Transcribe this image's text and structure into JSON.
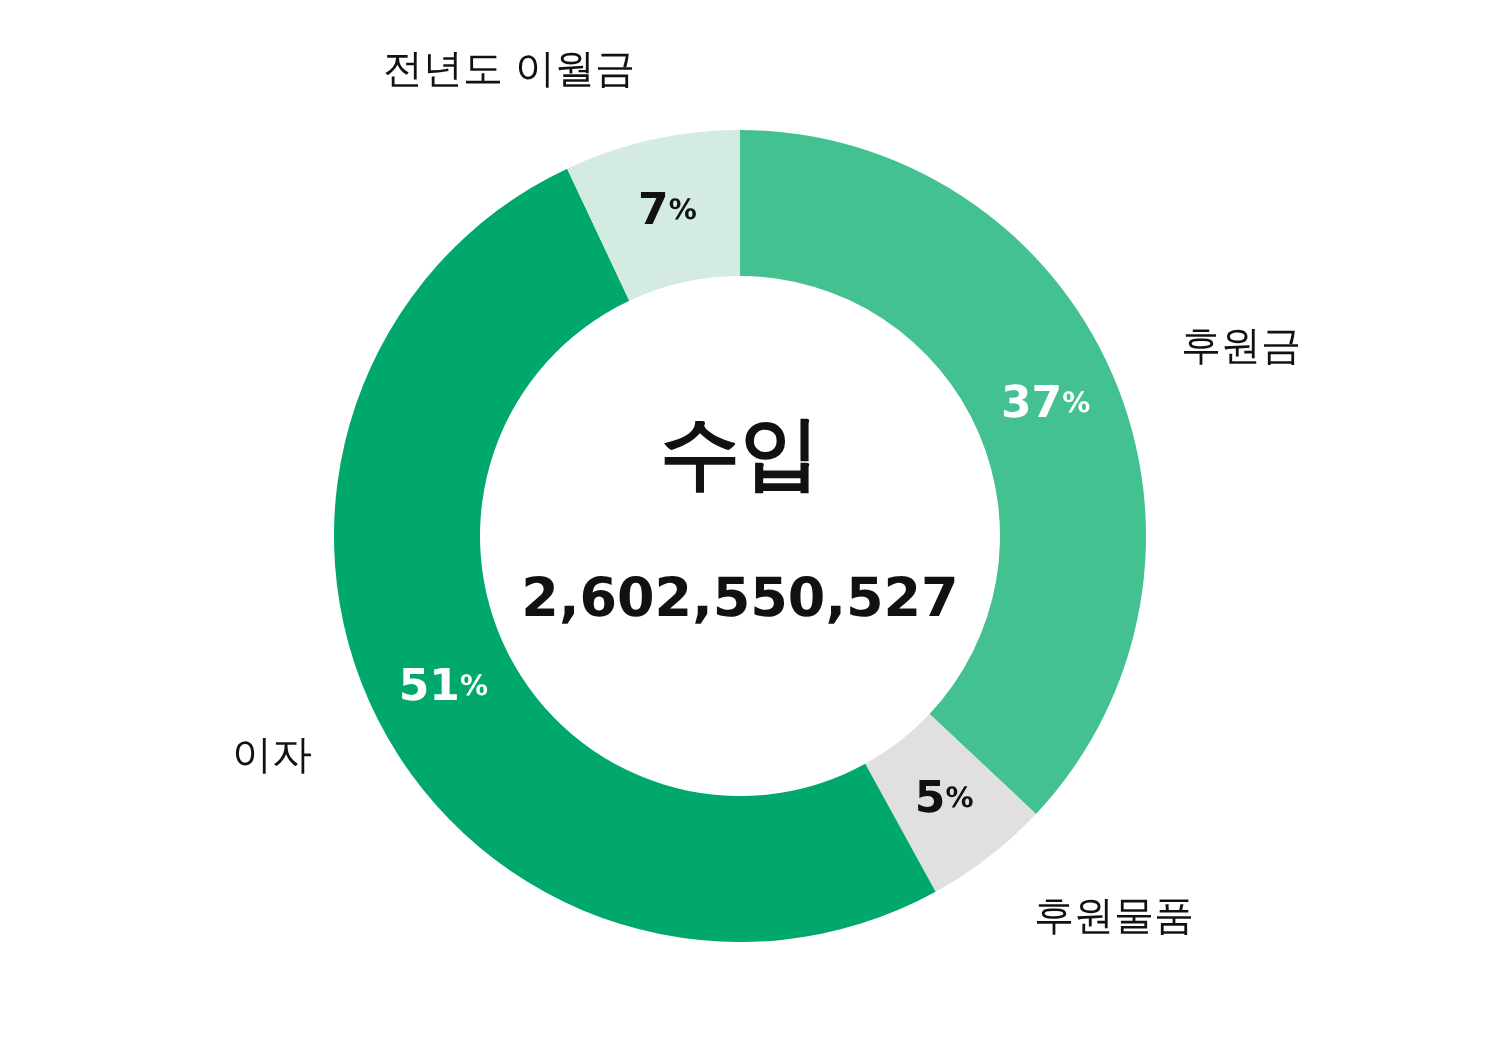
{
  "chart_data": {
    "type": "donut",
    "title": "수입",
    "subtitle": "2,602,550,527",
    "categories": [
      "후원금",
      "후원물품",
      "이자",
      "전년도 이월금"
    ],
    "values": [
      37,
      5,
      51,
      7
    ],
    "value_labels": [
      "37%",
      "5%",
      "51%",
      "7%"
    ],
    "colors": [
      "#43c191",
      "#e0e0e0",
      "#00a86b",
      "#d4ebe2"
    ]
  }
}
